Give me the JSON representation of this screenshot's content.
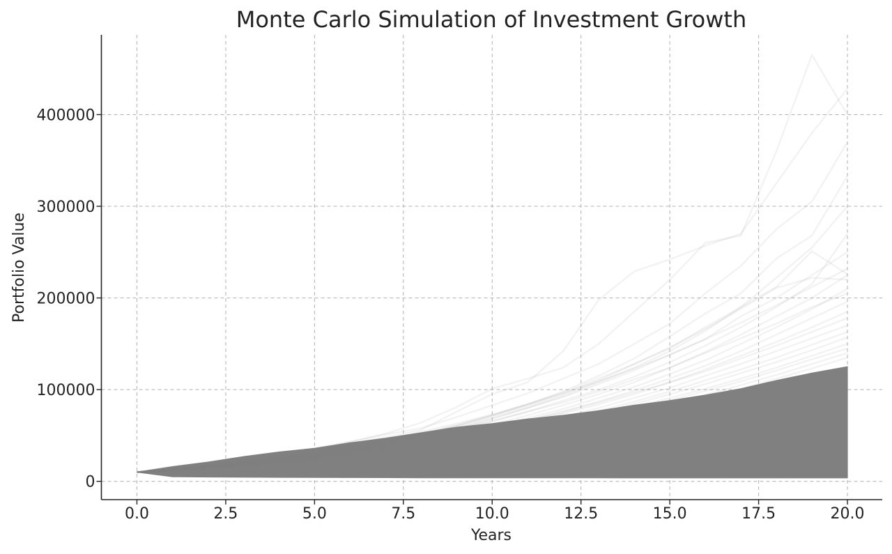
{
  "chart_data": {
    "type": "line",
    "title": "Monte Carlo Simulation of Investment Growth",
    "xlabel": "Years",
    "ylabel": "Portfolio Value",
    "xlim": [
      -1,
      20.98
    ],
    "ylim": [
      -20000,
      487000
    ],
    "xticks": [
      0.0,
      2.5,
      5.0,
      7.5,
      10.0,
      12.5,
      15.0,
      17.5,
      20.0
    ],
    "xtick_labels": [
      "0.0",
      "2.5",
      "5.0",
      "7.5",
      "10.0",
      "12.5",
      "15.0",
      "17.5",
      "20.0"
    ],
    "yticks": [
      0,
      100000,
      200000,
      300000,
      400000
    ],
    "ytick_labels": [
      "0",
      "100000",
      "200000",
      "300000",
      "400000"
    ],
    "grid": true,
    "legend": "none",
    "line_color": "#808080",
    "line_alpha": 0.1,
    "n_simulations_drawn": 1000,
    "x": [
      0,
      1,
      2,
      3,
      4,
      5,
      6,
      7,
      8,
      9,
      10,
      11,
      12,
      13,
      14,
      15,
      16,
      17,
      18,
      19,
      20
    ],
    "initial_value": 10000,
    "dense_band": {
      "name": "",
      "lower": [
        10000,
        5000,
        4700,
        4500,
        4300,
        4200,
        4100,
        4000,
        3900,
        3900,
        3800,
        3800,
        3800,
        3800,
        3700,
        3700,
        3700,
        3700,
        3700,
        3700,
        3700
      ],
      "upper": [
        10000,
        16000,
        21000,
        27000,
        32000,
        36000,
        42000,
        47000,
        53000,
        59000,
        63000,
        68000,
        72000,
        77000,
        83000,
        88000,
        94000,
        101000,
        110000,
        118000,
        125000
      ]
    },
    "series": [
      {
        "values": [
          10000,
          13000,
          17000,
          21500,
          26500,
          32000,
          41000,
          48000,
          56000,
          76000,
          95000,
          108000,
          142000,
          198000,
          229000,
          242000,
          257000,
          270000,
          325000,
          380000,
          428000
        ]
      },
      {
        "values": [
          10000,
          13500,
          18000,
          23000,
          28000,
          34500,
          43000,
          52000,
          64000,
          81000,
          101000,
          112000,
          124000,
          150000,
          185000,
          220000,
          260000,
          268000,
          360000,
          465000,
          400000
        ]
      },
      {
        "values": [
          10000,
          14000,
          19000,
          24000,
          29500,
          36000,
          43000,
          51000,
          58000,
          70000,
          83000,
          96000,
          112000,
          128000,
          150000,
          172000,
          205000,
          235000,
          275000,
          305000,
          370000
        ]
      },
      {
        "values": [
          10000,
          13000,
          16500,
          21000,
          25500,
          30500,
          36500,
          43000,
          51000,
          61000,
          72000,
          84000,
          98000,
          115000,
          134000,
          158000,
          183000,
          205000,
          243000,
          268000,
          333000
        ]
      },
      {
        "values": [
          10000,
          13000,
          17000,
          21000,
          25000,
          30000,
          36000,
          44000,
          52000,
          60000,
          71000,
          82000,
          95000,
          110000,
          128000,
          145000,
          168000,
          190000,
          222000,
          255000,
          300000
        ]
      },
      {
        "values": [
          10000,
          12500,
          16000,
          20000,
          24500,
          29000,
          35000,
          41000,
          48000,
          57000,
          68000,
          80000,
          93000,
          108000,
          124000,
          142000,
          164000,
          190000,
          212000,
          251000,
          226000
        ]
      },
      {
        "values": [
          10000,
          13000,
          17000,
          21000,
          26000,
          31000,
          37000,
          44000,
          51000,
          59000,
          69000,
          80000,
          92000,
          106000,
          121000,
          138000,
          155000,
          180000,
          200000,
          225000,
          250000
        ]
      },
      {
        "values": [
          10000,
          13000,
          16500,
          20500,
          25000,
          30000,
          35500,
          42000,
          49000,
          56000,
          65000,
          76000,
          88000,
          100000,
          114000,
          130000,
          148000,
          168000,
          190000,
          215000,
          270000
        ]
      },
      {
        "values": [
          10000,
          12500,
          15500,
          19500,
          24000,
          28500,
          33500,
          39500,
          46000,
          53500,
          62000,
          72000,
          83000,
          95000,
          108000,
          124000,
          141000,
          160000,
          180000,
          200000,
          225000
        ]
      },
      {
        "values": [
          10000,
          12500,
          15500,
          19000,
          23000,
          27500,
          33000,
          38500,
          45000,
          52000,
          60000,
          69000,
          79000,
          91000,
          103000,
          117000,
          132000,
          150000,
          168000,
          188000,
          210000
        ]
      },
      {
        "values": [
          10000,
          13000,
          17000,
          21000,
          25500,
          30500,
          36000,
          42500,
          50000,
          58000,
          66000,
          76000,
          86000,
          98000,
          111000,
          124000,
          140000,
          156000,
          172000,
          190000,
          205000
        ]
      },
      {
        "values": [
          10000,
          12000,
          15000,
          18500,
          22500,
          27000,
          32000,
          37500,
          43500,
          50500,
          58000,
          67000,
          76500,
          87000,
          99000,
          112000,
          126000,
          142000,
          160000,
          178000,
          196000
        ]
      },
      {
        "values": [
          10000,
          12000,
          15000,
          18500,
          22000,
          26500,
          31500,
          37000,
          43000,
          49500,
          57000,
          65000,
          74000,
          84000,
          95000,
          108000,
          122000,
          137000,
          152000,
          168000,
          185000
        ]
      },
      {
        "values": [
          10000,
          12500,
          15500,
          19500,
          23500,
          28000,
          33000,
          38500,
          44500,
          51000,
          58500,
          66500,
          75500,
          86000,
          97000,
          108000,
          120000,
          134000,
          148000,
          163000,
          178000
        ]
      },
      {
        "values": [
          10000,
          12000,
          14500,
          18000,
          21500,
          25500,
          30000,
          35000,
          41000,
          47000,
          54000,
          62000,
          70500,
          80000,
          91000,
          102000,
          115000,
          128000,
          142000,
          156000,
          170000
        ]
      },
      {
        "values": [
          10000,
          12000,
          15000,
          18000,
          21500,
          25000,
          29500,
          34500,
          40000,
          46000,
          52500,
          60000,
          68000,
          77000,
          87000,
          98000,
          110000,
          122000,
          135000,
          149000,
          163000
        ]
      },
      {
        "values": [
          10000,
          11500,
          14500,
          17500,
          21000,
          25000,
          29000,
          34000,
          39000,
          45000,
          51500,
          58500,
          66500,
          75000,
          84500,
          95000,
          106000,
          118000,
          130000,
          143000,
          157000
        ]
      },
      {
        "values": [
          10000,
          12000,
          14500,
          17500,
          21000,
          24500,
          28500,
          33000,
          38000,
          43500,
          49500,
          56500,
          64000,
          72000,
          81000,
          91000,
          101000,
          112000,
          124000,
          137000,
          150000
        ]
      },
      {
        "values": [
          10000,
          11500,
          14000,
          17000,
          20500,
          24000,
          28000,
          32500,
          37500,
          43000,
          49000,
          55500,
          62500,
          70500,
          79000,
          88500,
          98500,
          109000,
          121000,
          133000,
          145000
        ]
      },
      {
        "values": [
          10000,
          12000,
          14500,
          17500,
          20500,
          24000,
          28000,
          32000,
          37000,
          42000,
          47500,
          53500,
          60500,
          68000,
          76000,
          85000,
          94500,
          105000,
          116000,
          128000,
          140000
        ]
      },
      {
        "values": [
          10000,
          11500,
          14000,
          17000,
          20000,
          23500,
          27000,
          31500,
          36000,
          41000,
          46500,
          52500,
          59000,
          66000,
          74000,
          82500,
          91500,
          101000,
          112000,
          123000,
          135000
        ]
      },
      {
        "values": [
          10000,
          13500,
          17500,
          22000,
          27000,
          32500,
          39000,
          46000,
          54000,
          63000,
          73000,
          84000,
          96000,
          109000,
          123000,
          138000,
          155000,
          173000,
          192000,
          212000,
          232000
        ]
      },
      {
        "values": [
          10000,
          13000,
          16500,
          20500,
          25000,
          30500,
          37000,
          44000,
          52000,
          61000,
          72000,
          84000,
          97000,
          112000,
          128000,
          146000,
          166000,
          188000,
          211000,
          222000,
          220000
        ]
      }
    ]
  }
}
